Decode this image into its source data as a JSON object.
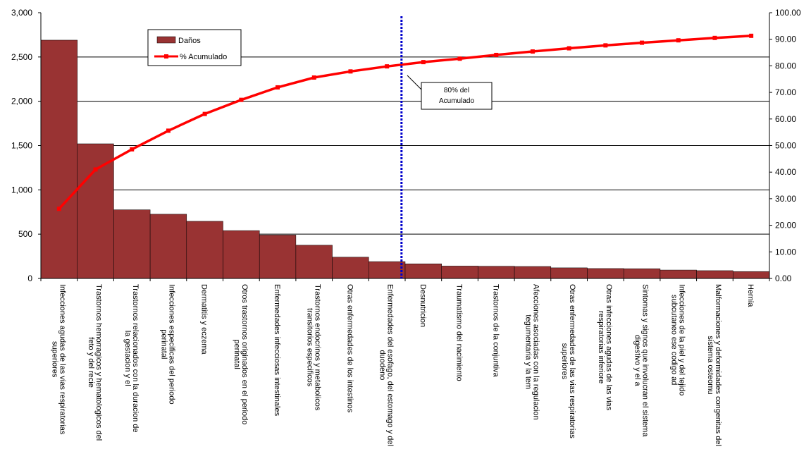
{
  "chart_data": {
    "type": "bar",
    "categories": [
      "Infecciones agudas de las vias respiratorias superiores",
      "Trastornos hemorragicos y hematologicos del feto y del recie",
      "Trastornos relacionados con la duracion de la gestacion y el",
      "Infecciones especificas del periodo perinatal",
      "Dermatitis y eczema",
      "Otros trastornos originados en el periodo perinatal",
      "Enfermedades infecciosas intestinales",
      "Trastornos endocrinos y metabolicos transitorios especificos",
      "Otras enfermedades de los intestinos",
      "Enfermedades del esofago, del estomago y del duodeno",
      "Desnutricion",
      "Traumatismo del nacimiento",
      "Trastornos de la conjuntiva",
      "Afecciones asociadas con la regulacion tegumentaria y la tem",
      "Otras enfermedades de las vias respiratorias superiores",
      "Otras infecciones agudas de las vias respiratorias inferiore",
      "Sintomas y signos que involucran el sistema digestivo y el a",
      "Infecciones de la piel y del tejido subcutaneo ese codigo ad",
      "Malformaciones y deformidades congenitas del sistema osteomu",
      "Hernia"
    ],
    "series": [
      {
        "name": "Daños",
        "axis": "left",
        "kind": "bar",
        "color": "#993333",
        "values": [
          2690,
          1520,
          775,
          725,
          645,
          540,
          490,
          375,
          240,
          190,
          165,
          140,
          138,
          135,
          120,
          112,
          110,
          95,
          88,
          78
        ]
      },
      {
        "name": "% Acumulado",
        "axis": "right",
        "kind": "line",
        "color": "#ff0000",
        "values": [
          26.2,
          41,
          48.6,
          55.6,
          61.9,
          67.2,
          71.9,
          75.6,
          77.9,
          79.8,
          81.4,
          82.7,
          84.1,
          85.4,
          86.6,
          87.7,
          88.7,
          89.6,
          90.5,
          91.3
        ]
      }
    ],
    "y_left": {
      "ylim": [
        0,
        3000
      ],
      "ticks": [
        "0",
        "500",
        "1,000",
        "1,500",
        "2,000",
        "2,500",
        "3,000"
      ]
    },
    "y_right": {
      "ylim": [
        0,
        100
      ],
      "ticks": [
        "0.00",
        "10.00",
        "20.00",
        "30.00",
        "40.00",
        "50.00",
        "60.00",
        "70.00",
        "80.00",
        "90.00",
        "100.00"
      ]
    },
    "grid": "horizontal",
    "legend": {
      "placement": "top-left"
    },
    "annotation": {
      "text_line1": "80% del",
      "text_line2": "Acumulado",
      "marker_category_index": 9.9,
      "marker_color": "#0000cc"
    }
  }
}
